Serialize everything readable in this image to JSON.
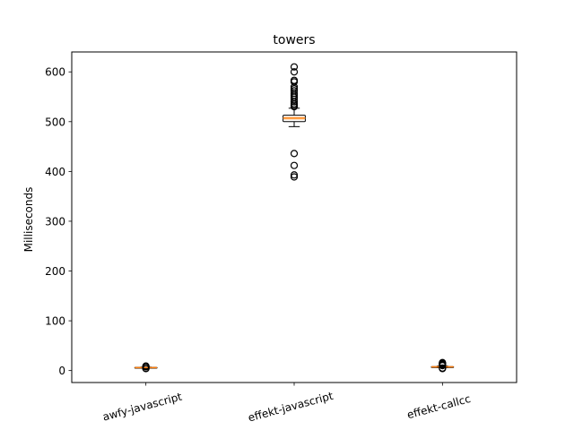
{
  "chart_data": {
    "type": "boxplot",
    "title": "towers",
    "xlabel": "",
    "ylabel": "Milliseconds",
    "ylim": [
      -24,
      640
    ],
    "yticks": [
      0,
      100,
      200,
      300,
      400,
      500,
      600
    ],
    "categories": [
      "awfy-javascript",
      "effekt-javascript",
      "effekt-callcc"
    ],
    "series": [
      {
        "category": "awfy-javascript",
        "whisker_low": 5,
        "q1": 5.5,
        "median": 6,
        "q3": 6.5,
        "whisker_high": 7,
        "outliers": [
          4,
          4.5,
          7.5,
          8,
          9
        ]
      },
      {
        "category": "effekt-javascript",
        "whisker_low": 490,
        "q1": 500,
        "median": 507,
        "q3": 513,
        "whisker_high": 527,
        "outliers": [
          389,
          393,
          412,
          436,
          530,
          533,
          536,
          540,
          545,
          549,
          553,
          557,
          562,
          566,
          570,
          580,
          583,
          600,
          610
        ]
      },
      {
        "category": "effekt-callcc",
        "whisker_low": 6,
        "q1": 7,
        "median": 7.5,
        "q3": 8,
        "whisker_high": 9,
        "outliers": [
          4,
          5,
          10,
          11,
          12,
          13,
          14,
          15,
          16
        ]
      }
    ],
    "grid": false,
    "legend": "none",
    "colors": {
      "box": "#000000",
      "fill": "#ffffff",
      "median": "#ff7f0e",
      "median_band": "#ffe1c4",
      "flier": "#000000"
    }
  }
}
